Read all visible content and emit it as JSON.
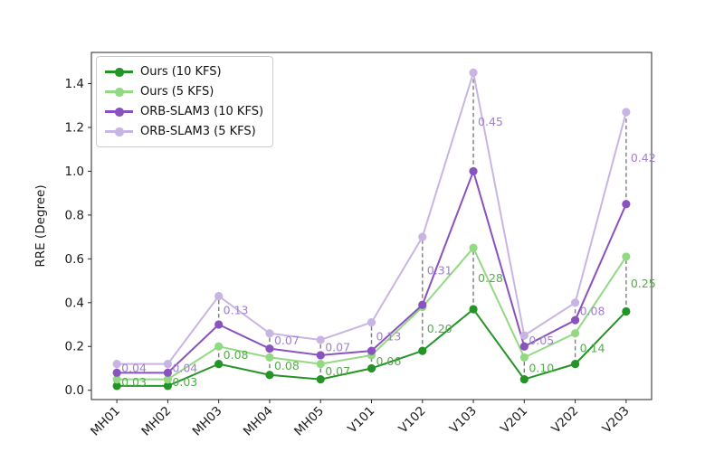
{
  "chart_data": {
    "type": "line",
    "title": "",
    "xlabel": "",
    "ylabel": "RRE (Degree)",
    "categories": [
      "MH01",
      "MH02",
      "MH03",
      "MH04",
      "MH05",
      "V101",
      "V102",
      "V103",
      "V201",
      "V202",
      "V203"
    ],
    "series": [
      {
        "name": "Ours (10 KFS)",
        "color": "#249427",
        "values": [
          0.02,
          0.02,
          0.12,
          0.07,
          0.05,
          0.1,
          0.18,
          0.37,
          0.05,
          0.12,
          0.36
        ]
      },
      {
        "name": "Ours (5 KFS)",
        "color": "#93d983",
        "values": [
          0.05,
          0.05,
          0.2,
          0.15,
          0.12,
          0.16,
          0.38,
          0.65,
          0.15,
          0.26,
          0.61
        ]
      },
      {
        "name": "ORB-SLAM3 (10 KFS)",
        "color": "#8a52be",
        "values": [
          0.08,
          0.08,
          0.3,
          0.19,
          0.16,
          0.18,
          0.39,
          1.0,
          0.2,
          0.32,
          0.85
        ]
      },
      {
        "name": "ORB-SLAM3 (5 KFS)",
        "color": "#c9b5e3",
        "values": [
          0.12,
          0.12,
          0.43,
          0.26,
          0.23,
          0.31,
          0.7,
          1.45,
          0.25,
          0.4,
          1.27
        ]
      }
    ],
    "gap_annotations": [
      {
        "between": [
          "Ours (10 KFS)",
          "Ours (5 KFS)"
        ],
        "color": "#55ab4c",
        "labels": [
          "0.03",
          "0.03",
          "0.08",
          "0.08",
          "0.07",
          "0.06",
          "0.20",
          "0.28",
          "0.10",
          "0.14",
          "0.25"
        ]
      },
      {
        "between": [
          "ORB-SLAM3 (10 KFS)",
          "ORB-SLAM3 (5 KFS)"
        ],
        "color": "#a081ce",
        "labels": [
          "0.04",
          "0.04",
          "0.13",
          "0.07",
          "0.07",
          "0.13",
          "0.31",
          "0.45",
          "0.05",
          "0.08",
          "0.42"
        ]
      }
    ],
    "connector": {
      "style": "dashed",
      "color": "#7d7d7d"
    },
    "yticks": [
      "0.0",
      "0.2",
      "0.4",
      "0.6",
      "0.8",
      "1.0",
      "1.2",
      "1.4"
    ],
    "ylim": [
      -0.0425,
      1.5425
    ],
    "grid": false,
    "legend_position": "upper left",
    "x_tick_rotation": 45
  }
}
